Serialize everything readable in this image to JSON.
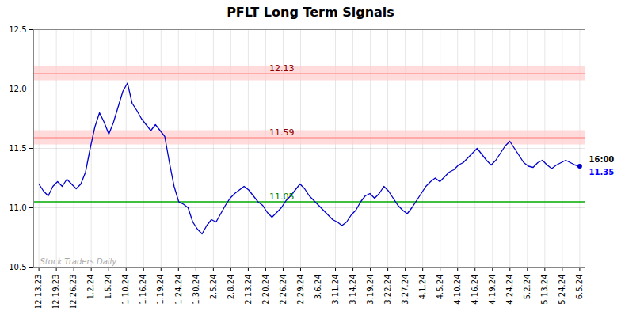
{
  "chart_data": {
    "type": "line",
    "title": "PFLT Long Term Signals",
    "color": "#0000cc",
    "grid": true,
    "xlim": [
      -0.3,
      31.3
    ],
    "xticks": [
      {
        "value": 0,
        "label": "12.13.23"
      },
      {
        "value": 1,
        "label": "12.19.23"
      },
      {
        "value": 2,
        "label": "12.26.23"
      },
      {
        "value": 3,
        "label": "1.2.24"
      },
      {
        "value": 4,
        "label": "1.5.24"
      },
      {
        "value": 5,
        "label": "1.10.24"
      },
      {
        "value": 6,
        "label": "1.16.24"
      },
      {
        "value": 7,
        "label": "1.19.24"
      },
      {
        "value": 8,
        "label": "1.24.24"
      },
      {
        "value": 9,
        "label": "1.30.24"
      },
      {
        "value": 10,
        "label": "2.5.24"
      },
      {
        "value": 11,
        "label": "2.8.24"
      },
      {
        "value": 12,
        "label": "2.13.24"
      },
      {
        "value": 13,
        "label": "2.20.24"
      },
      {
        "value": 14,
        "label": "2.26.24"
      },
      {
        "value": 15,
        "label": "2.29.24"
      },
      {
        "value": 16,
        "label": "3.6.24"
      },
      {
        "value": 17,
        "label": "3.11.24"
      },
      {
        "value": 18,
        "label": "3.14.24"
      },
      {
        "value": 19,
        "label": "3.19.24"
      },
      {
        "value": 20,
        "label": "3.22.24"
      },
      {
        "value": 21,
        "label": "3.27.24"
      },
      {
        "value": 22,
        "label": "4.1.24"
      },
      {
        "value": 23,
        "label": "4.5.24"
      },
      {
        "value": 24,
        "label": "4.10.24"
      },
      {
        "value": 25,
        "label": "4.16.24"
      },
      {
        "value": 26,
        "label": "4.19.24"
      },
      {
        "value": 27,
        "label": "4.24.24"
      },
      {
        "value": 28,
        "label": "5.2.24"
      },
      {
        "value": 29,
        "label": "5.13.24"
      },
      {
        "value": 30,
        "label": "5.24.24"
      },
      {
        "value": 31,
        "label": "6.5.24"
      }
    ],
    "ylim": [
      10.5,
      12.5
    ],
    "yticks": [
      10.5,
      {
        "value": 11.0,
        "label": "11.0"
      },
      11.5,
      {
        "value": 12.0,
        "label": "12.0"
      },
      12.5
    ],
    "values": [
      11.2,
      11.14,
      11.1,
      11.18,
      11.22,
      11.18,
      11.24,
      11.2,
      11.16,
      11.2,
      11.3,
      11.5,
      11.68,
      11.8,
      11.72,
      11.62,
      11.72,
      11.85,
      11.98,
      12.05,
      11.88,
      11.82,
      11.75,
      11.7,
      11.65,
      11.7,
      11.65,
      11.6,
      11.38,
      11.18,
      11.05,
      11.03,
      11.0,
      10.88,
      10.82,
      10.78,
      10.85,
      10.9,
      10.88,
      10.95,
      11.02,
      11.08,
      11.12,
      11.15,
      11.18,
      11.15,
      11.1,
      11.05,
      11.02,
      10.96,
      10.92,
      10.96,
      11.0,
      11.06,
      11.1,
      11.15,
      11.2,
      11.16,
      11.1,
      11.06,
      11.02,
      10.98,
      10.94,
      10.9,
      10.88,
      10.85,
      10.88,
      10.94,
      10.98,
      11.05,
      11.1,
      11.12,
      11.08,
      11.12,
      11.18,
      11.14,
      11.08,
      11.02,
      10.98,
      10.95,
      11.0,
      11.06,
      11.12,
      11.18,
      11.22,
      11.25,
      11.22,
      11.26,
      11.3,
      11.32,
      11.36,
      11.38,
      11.42,
      11.46,
      11.5,
      11.45,
      11.4,
      11.36,
      11.4,
      11.46,
      11.52,
      11.56,
      11.5,
      11.44,
      11.38,
      11.35,
      11.34,
      11.38,
      11.4,
      11.36,
      11.33,
      11.36,
      11.38,
      11.4,
      11.38,
      11.36,
      11.35
    ],
    "lines": [
      {
        "value": 11.59,
        "label": "11.59",
        "color": "#ff9999",
        "label_color": "#8b0000",
        "band": 0.06,
        "band_color": "#ffcccc"
      },
      {
        "value": 12.13,
        "label": "12.13",
        "color": "#ff9999",
        "label_color": "#8b0000",
        "band": 0.06,
        "band_color": "#ffcccc"
      },
      {
        "value": 11.05,
        "label": "11.05",
        "color": "#00aa00",
        "label_color": "#008000"
      }
    ],
    "last_label": {
      "time": "16:00",
      "price": 11.35,
      "price_color": "blue"
    },
    "watermark": "Stock Traders Daily"
  }
}
